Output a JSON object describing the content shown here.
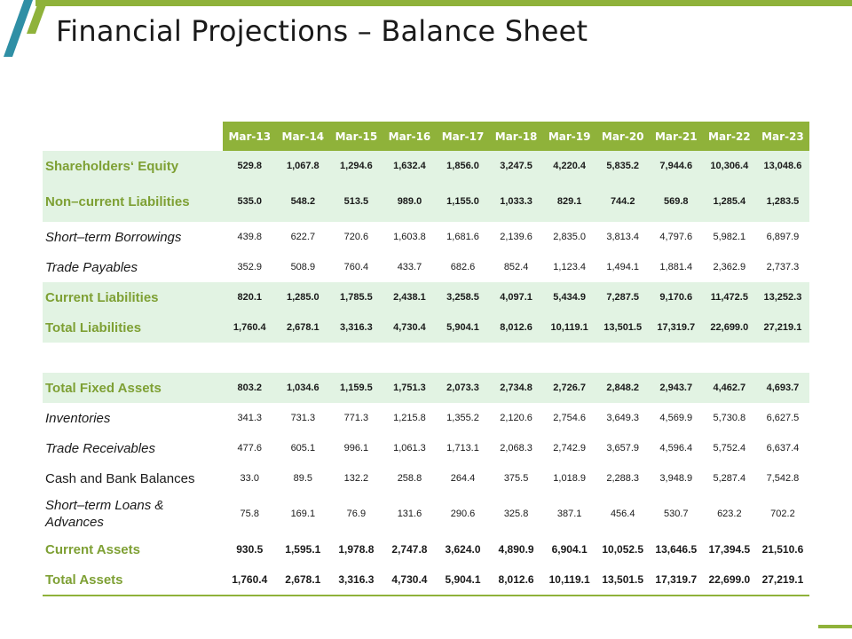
{
  "title": "Financial Projections – Balance Sheet",
  "accent_color": "#8fb23a",
  "highlight_color": "#e2f3e3",
  "label_color": "#7ea034",
  "months": [
    "Mar-13",
    "Mar-14",
    "Mar-15",
    "Mar-16",
    "Mar-17",
    "Mar-18",
    "Mar-19",
    "Mar-20",
    "Mar-21",
    "Mar-22",
    "Mar-23"
  ],
  "rows": [
    {
      "label": "Shareholders‘ Equity",
      "style": "hl",
      "values": [
        "529.8",
        "1,067.8",
        "1,294.6",
        "1,632.4",
        "1,856.0",
        "3,247.5",
        "4,220.4",
        "5,835.2",
        "7,944.6",
        "10,306.4",
        "13,048.6"
      ]
    },
    {
      "label": "Non–current Liabilities",
      "style": "hl",
      "values": [
        "535.0",
        "548.2",
        "513.5",
        "989.0",
        "1,155.0",
        "1,033.3",
        "829.1",
        "744.2",
        "569.8",
        "1,285.4",
        "1,283.5"
      ]
    },
    {
      "label": "Short–term Borrowings",
      "style": "italic",
      "values": [
        "439.8",
        "622.7",
        "720.6",
        "1,603.8",
        "1,681.6",
        "2,139.6",
        "2,835.0",
        "3,813.4",
        "4,797.6",
        "5,982.1",
        "6,897.9"
      ]
    },
    {
      "label": "Trade Payables",
      "style": "italic",
      "values": [
        "352.9",
        "508.9",
        "760.4",
        "433.7",
        "682.6",
        "852.4",
        "1,123.4",
        "1,494.1",
        "1,881.4",
        "2,362.9",
        "2,737.3"
      ]
    },
    {
      "label": "Current Liabilities",
      "style": "hl",
      "values": [
        "820.1",
        "1,285.0",
        "1,785.5",
        "2,438.1",
        "3,258.5",
        "4,097.1",
        "5,434.9",
        "7,287.5",
        "9,170.6",
        "11,472.5",
        "13,252.3"
      ]
    },
    {
      "label": "Total Liabilities",
      "style": "hl",
      "values": [
        "1,760.4",
        "2,678.1",
        "3,316.3",
        "4,730.4",
        "5,904.1",
        "8,012.6",
        "10,119.1",
        "13,501.5",
        "17,319.7",
        "22,699.0",
        "27,219.1"
      ]
    },
    {
      "label": "",
      "style": "spacer",
      "values": []
    },
    {
      "label": "Total Fixed Assets",
      "style": "hl",
      "values": [
        "803.2",
        "1,034.6",
        "1,159.5",
        "1,751.3",
        "2,073.3",
        "2,734.8",
        "2,726.7",
        "2,848.2",
        "2,943.7",
        "4,462.7",
        "4,693.7"
      ]
    },
    {
      "label": "Inventories",
      "style": "italic",
      "values": [
        "341.3",
        "731.3",
        "771.3",
        "1,215.8",
        "1,355.2",
        "2,120.6",
        "2,754.6",
        "3,649.3",
        "4,569.9",
        "5,730.8",
        "6,627.5"
      ]
    },
    {
      "label": "Trade Receivables",
      "style": "italic",
      "values": [
        "477.6",
        "605.1",
        "996.1",
        "1,061.3",
        "1,713.1",
        "2,068.3",
        "2,742.9",
        "3,657.9",
        "4,596.4",
        "5,752.4",
        "6,637.4"
      ]
    },
    {
      "label": "Cash and Bank Balances",
      "style": "plain",
      "values": [
        "33.0",
        "89.5",
        "132.2",
        "258.8",
        "264.4",
        "375.5",
        "1,018.9",
        "2,288.3",
        "3,948.9",
        "5,287.4",
        "7,542.8"
      ]
    },
    {
      "label": "Short–term Loans & Advances",
      "style": "italic",
      "values": [
        "75.8",
        "169.1",
        "76.9",
        "131.6",
        "290.6",
        "325.8",
        "387.1",
        "456.4",
        "530.7",
        "623.2",
        "702.2"
      ]
    },
    {
      "label": "Current Assets",
      "style": "total",
      "values": [
        "930.5",
        "1,595.1",
        "1,978.8",
        "2,747.8",
        "3,624.0",
        "4,890.9",
        "6,904.1",
        "10,052.5",
        "13,646.5",
        "17,394.5",
        "21,510.6"
      ]
    },
    {
      "label": "Total Assets",
      "style": "total",
      "values": [
        "1,760.4",
        "2,678.1",
        "3,316.3",
        "4,730.4",
        "5,904.1",
        "8,012.6",
        "10,119.1",
        "13,501.5",
        "17,319.7",
        "22,699.0",
        "27,219.1"
      ]
    }
  ]
}
